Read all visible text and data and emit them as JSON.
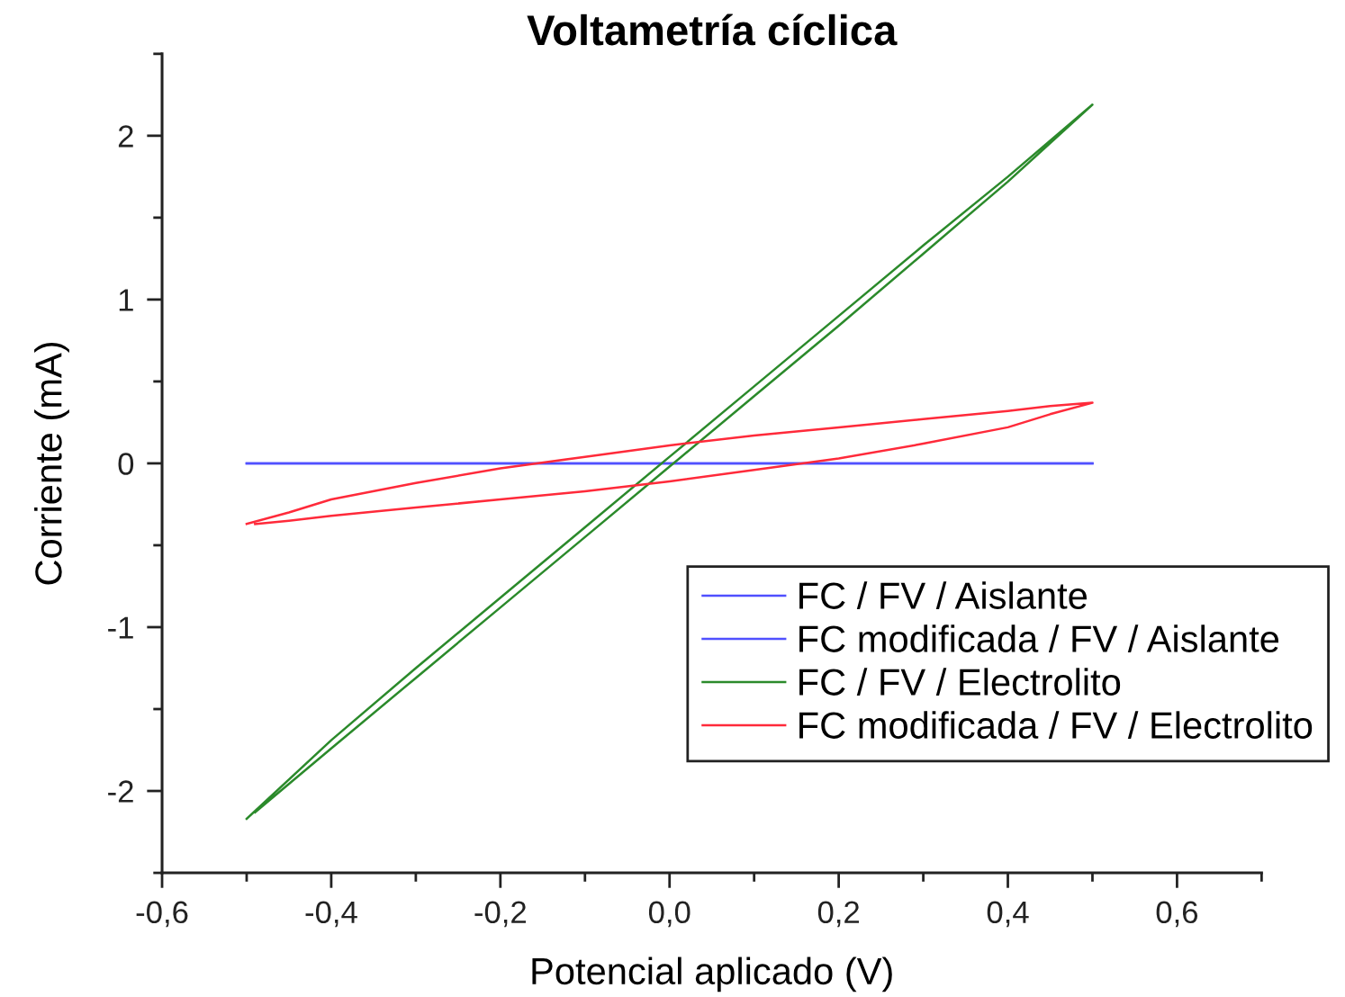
{
  "chart_data": {
    "type": "line",
    "title": "Voltametría cíclica",
    "xlabel": "Potencial aplicado (V)",
    "ylabel": "Corriente (mA)",
    "xlim": [
      -0.6,
      0.7
    ],
    "xticks": [
      {
        "value": -0.6,
        "label": "-0,6"
      },
      {
        "value": -0.5,
        "label": null
      },
      {
        "value": -0.4,
        "label": "-0,4"
      },
      {
        "value": -0.3,
        "label": null
      },
      {
        "value": -0.2,
        "label": "-0,2"
      },
      {
        "value": -0.1,
        "label": null
      },
      {
        "value": 0.0,
        "label": "0,0"
      },
      {
        "value": 0.1,
        "label": null
      },
      {
        "value": 0.2,
        "label": "0,2"
      },
      {
        "value": 0.3,
        "label": null
      },
      {
        "value": 0.4,
        "label": "0,4"
      },
      {
        "value": 0.5,
        "label": null
      },
      {
        "value": 0.6,
        "label": "0,6"
      },
      {
        "value": 0.7,
        "label": null
      }
    ],
    "ylim": [
      -2.5,
      2.5
    ],
    "yticks": [
      {
        "value": -2.5,
        "label": null
      },
      -2,
      {
        "value": -1.5,
        "label": null
      },
      -1,
      {
        "value": -0.5,
        "label": null
      },
      0,
      {
        "value": 0.5,
        "label": null
      },
      1,
      {
        "value": 1.5,
        "label": null
      },
      2,
      {
        "value": 2.5,
        "label": null
      }
    ],
    "grid": false,
    "legend": "bottom right",
    "series": [
      {
        "name": "FC / FV / Aislante",
        "color": "#5050ff",
        "x": [
          -0.5,
          0.0,
          0.5
        ],
        "values": [
          0,
          0,
          0
        ]
      },
      {
        "name": "FC modificada / FV / Aislante",
        "color": "#5050ff",
        "x": [
          -0.5,
          0.0,
          0.5
        ],
        "values": [
          0,
          0,
          0
        ]
      },
      {
        "name": "FC / FV / Electrolito",
        "color": "#2b8a2b",
        "x": [
          -0.5,
          -0.4,
          -0.3,
          -0.2,
          -0.1,
          0.0,
          0.1,
          0.2,
          0.3,
          0.4,
          0.5,
          0.4,
          0.3,
          0.2,
          0.1,
          0.0,
          -0.1,
          -0.2,
          -0.3,
          -0.4,
          -0.49
        ],
        "values": [
          -2.17,
          -1.69,
          -1.25,
          -0.82,
          -0.39,
          0.04,
          0.47,
          0.9,
          1.33,
          1.75,
          2.19,
          1.72,
          1.28,
          0.84,
          0.41,
          -0.02,
          -0.45,
          -0.88,
          -1.31,
          -1.74,
          -2.13
        ]
      },
      {
        "name": "FC modificada / FV / Electrolito",
        "color": "#ff2a3a",
        "x": [
          -0.5,
          -0.45,
          -0.4,
          -0.3,
          -0.2,
          -0.1,
          0.0,
          0.1,
          0.2,
          0.3,
          0.4,
          0.45,
          0.5,
          0.45,
          0.4,
          0.3,
          0.2,
          0.1,
          0.0,
          -0.1,
          -0.2,
          -0.3,
          -0.4,
          -0.45,
          -0.49
        ],
        "values": [
          -0.37,
          -0.3,
          -0.22,
          -0.12,
          -0.03,
          0.04,
          0.11,
          0.17,
          0.22,
          0.27,
          0.32,
          0.35,
          0.37,
          0.3,
          0.22,
          0.12,
          0.03,
          -0.04,
          -0.11,
          -0.17,
          -0.22,
          -0.27,
          -0.32,
          -0.35,
          -0.37
        ]
      }
    ]
  }
}
